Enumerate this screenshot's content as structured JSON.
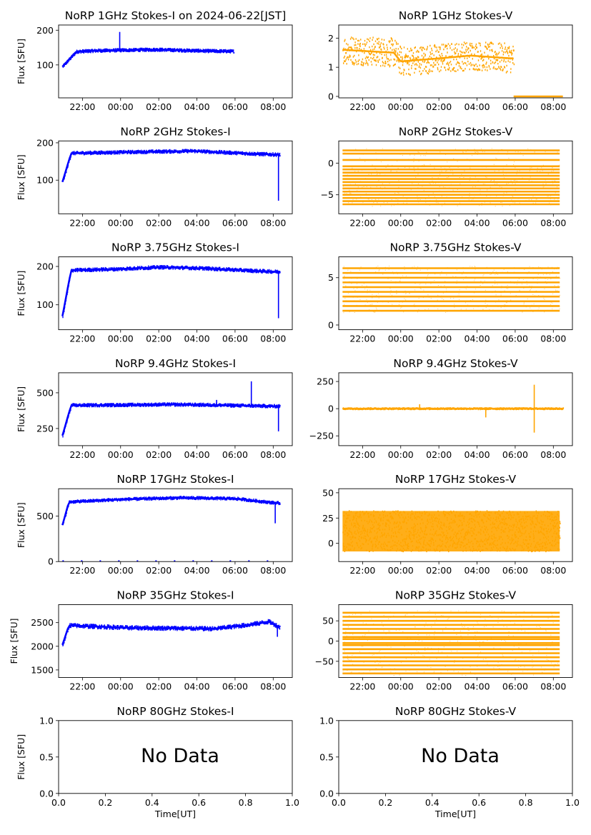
{
  "figure": {
    "x_label": "Time[UT]",
    "y_label": "Flux [SFU]",
    "no_data_text": "No Data"
  },
  "colors": {
    "stokes_i": "#0000ff",
    "stokes_v": "#ffa500"
  },
  "chart_data": [
    {
      "type": "scatter",
      "title": "NoRP 1GHz Stokes-I on 2024-06-22[JST]",
      "ylabel": "Flux [SFU]",
      "xlim": [
        "20:45",
        "09:00"
      ],
      "ylim": [
        5,
        215
      ],
      "xticks": [
        "22:00",
        "00:00",
        "02:00",
        "04:00",
        "06:00",
        "08:00"
      ],
      "yticks": [
        {
          "v": 100,
          "label": "100"
        },
        {
          "v": 200,
          "label": "200"
        }
      ],
      "series": [
        {
          "color": "#0000ff",
          "t0": "20:57",
          "t1": "05:55",
          "base": [
            [
              0,
              95
            ],
            [
              0.08,
              138
            ],
            [
              0.2,
              141
            ],
            [
              0.55,
              144
            ],
            [
              0.69,
              142
            ],
            [
              0.85,
              140
            ],
            [
              1,
              139
            ]
          ],
          "spread": 4,
          "spikes": [
            [
              0.335,
              195
            ]
          ]
        }
      ]
    },
    {
      "type": "scatter",
      "title": "NoRP 1GHz Stokes-V",
      "ylabel": "",
      "xlim": [
        "20:45",
        "09:00"
      ],
      "ylim": [
        -0.05,
        2.45
      ],
      "xticks": [
        "22:00",
        "00:00",
        "02:00",
        "04:00",
        "06:00",
        "08:00"
      ],
      "yticks": [
        {
          "v": 0,
          "label": "0"
        },
        {
          "v": 1,
          "label": "1"
        },
        {
          "v": 2,
          "label": "2"
        }
      ],
      "series": [
        {
          "color": "#ffa500",
          "t0": "20:57",
          "t1": "05:55",
          "base": [
            [
              0,
              1.6
            ],
            [
              0.3,
              1.5
            ],
            [
              0.34,
              1.2
            ],
            [
              0.55,
              1.3
            ],
            [
              0.75,
              1.4
            ],
            [
              1,
              1.3
            ]
          ],
          "spread": 0.5,
          "spikes": []
        }
      ],
      "flat": [
        {
          "t0": "05:55",
          "t1": "08:30",
          "v": 0.0
        }
      ]
    },
    {
      "type": "scatter",
      "title": "NoRP 2GHz Stokes-I",
      "ylabel": "Flux [SFU]",
      "xlim": [
        "20:45",
        "09:00"
      ],
      "ylim": [
        10,
        205
      ],
      "xticks": [
        "22:00",
        "00:00",
        "02:00",
        "04:00",
        "06:00",
        "08:00"
      ],
      "yticks": [
        {
          "v": 100,
          "label": "100"
        },
        {
          "v": 200,
          "label": "200"
        }
      ],
      "series": [
        {
          "color": "#0000ff",
          "t0": "20:57",
          "t1": "08:20",
          "base": [
            [
              0,
              95
            ],
            [
              0.04,
              172
            ],
            [
              0.3,
              175
            ],
            [
              0.6,
              178
            ],
            [
              0.9,
              170
            ],
            [
              1,
              168
            ]
          ],
          "spread": 4,
          "spikes": [
            [
              0.995,
              45
            ]
          ]
        }
      ]
    },
    {
      "type": "bands",
      "title": "NoRP 2GHz Stokes-V",
      "ylabel": "",
      "xlim": [
        "20:45",
        "09:00"
      ],
      "ylim": [
        -8,
        3.5
      ],
      "xticks": [
        "22:00",
        "00:00",
        "02:00",
        "04:00",
        "06:00",
        "08:00"
      ],
      "yticks": [
        {
          "v": 0,
          "label": "0"
        },
        {
          "v": -5,
          "label": "−5"
        }
      ],
      "bands": {
        "color": "#ffa500",
        "t0": "20:57",
        "t1": "08:20",
        "levels": [
          2,
          1.5,
          0.5,
          -0.5,
          -1,
          -1.5,
          -2,
          -2.5,
          -3,
          -3.5,
          -4,
          -4.5,
          -5,
          -5.5,
          -6,
          -6.5
        ]
      }
    },
    {
      "type": "scatter",
      "title": "NoRP 3.75GHz Stokes-I",
      "ylabel": "Flux [SFU]",
      "xlim": [
        "20:45",
        "09:00"
      ],
      "ylim": [
        35,
        225
      ],
      "xticks": [
        "22:00",
        "00:00",
        "02:00",
        "04:00",
        "06:00",
        "08:00"
      ],
      "yticks": [
        {
          "v": 100,
          "label": "100"
        },
        {
          "v": 200,
          "label": "200"
        }
      ],
      "series": [
        {
          "color": "#0000ff",
          "t0": "20:57",
          "t1": "08:20",
          "base": [
            [
              0,
              70
            ],
            [
              0.04,
              190
            ],
            [
              0.25,
              193
            ],
            [
              0.45,
              198
            ],
            [
              0.65,
              195
            ],
            [
              0.9,
              188
            ],
            [
              1,
              186
            ]
          ],
          "spread": 4,
          "spikes": [
            [
              0.995,
              65
            ]
          ]
        }
      ]
    },
    {
      "type": "bands",
      "title": "NoRP 3.75GHz Stokes-V",
      "ylabel": "",
      "xlim": [
        "20:45",
        "09:00"
      ],
      "ylim": [
        -0.5,
        7.2
      ],
      "xticks": [
        "22:00",
        "00:00",
        "02:00",
        "04:00",
        "06:00",
        "08:00"
      ],
      "yticks": [
        {
          "v": 0,
          "label": "0"
        },
        {
          "v": 5,
          "label": "5"
        }
      ],
      "bands": {
        "color": "#ffa500",
        "t0": "20:57",
        "t1": "08:20",
        "levels": [
          6,
          5.5,
          5,
          4.5,
          4,
          3.5,
          3,
          2.5,
          2,
          1.5
        ]
      }
    },
    {
      "type": "scatter",
      "title": "NoRP 9.4GHz Stokes-I",
      "ylabel": "Flux [SFU]",
      "xlim": [
        "20:45",
        "09:00"
      ],
      "ylim": [
        130,
        640
      ],
      "xticks": [
        "22:00",
        "00:00",
        "02:00",
        "04:00",
        "06:00",
        "08:00"
      ],
      "yticks": [
        {
          "v": 250,
          "label": "250"
        },
        {
          "v": 500,
          "label": "500"
        }
      ],
      "series": [
        {
          "color": "#0000ff",
          "t0": "20:57",
          "t1": "08:20",
          "base": [
            [
              0,
              200
            ],
            [
              0.04,
              412
            ],
            [
              0.3,
              415
            ],
            [
              0.5,
              418
            ],
            [
              0.7,
              414
            ],
            [
              1,
              405
            ]
          ],
          "spread": 10,
          "spikes": [
            [
              0.87,
              580
            ],
            [
              0.71,
              450
            ],
            [
              0.995,
              230
            ]
          ]
        }
      ]
    },
    {
      "type": "scatter",
      "title": "NoRP 9.4GHz Stokes-V",
      "ylabel": "",
      "xlim": [
        "20:45",
        "09:00"
      ],
      "ylim": [
        -340,
        330
      ],
      "xticks": [
        "22:00",
        "00:00",
        "02:00",
        "04:00",
        "06:00",
        "08:00"
      ],
      "yticks": [
        {
          "v": 250,
          "label": "250"
        },
        {
          "v": 0,
          "label": "0"
        },
        {
          "v": -250,
          "label": "−250"
        }
      ],
      "series": [
        {
          "color": "#ffa500",
          "t0": "20:57",
          "t1": "08:30",
          "base": [
            [
              0,
              0
            ],
            [
              1,
              0
            ]
          ],
          "spread": 6,
          "spikes": [
            [
              0.87,
              220
            ],
            [
              0.87,
              -220
            ],
            [
              0.65,
              -80
            ],
            [
              0.35,
              40
            ]
          ]
        }
      ]
    },
    {
      "type": "scatter",
      "title": "NoRP 17GHz Stokes-I",
      "ylabel": "Flux [SFU]",
      "xlim": [
        "20:45",
        "09:00"
      ],
      "ylim": [
        0,
        800
      ],
      "xticks": [
        "22:00",
        "00:00",
        "02:00",
        "04:00",
        "06:00",
        "08:00"
      ],
      "yticks": [
        {
          "v": 0,
          "label": "0"
        },
        {
          "v": 500,
          "label": "500"
        }
      ],
      "series": [
        {
          "color": "#0000ff",
          "t0": "20:57",
          "t1": "08:20",
          "base": [
            [
              0,
              400
            ],
            [
              0.03,
              655
            ],
            [
              0.3,
              685
            ],
            [
              0.55,
              700
            ],
            [
              0.8,
              690
            ],
            [
              0.95,
              650
            ],
            [
              1,
              640
            ]
          ],
          "spread": 14,
          "spikes": [
            [
              0.98,
              420
            ]
          ]
        }
      ],
      "flat": [
        {
          "t0": "20:57",
          "t1": "08:30",
          "v": 5,
          "dashed": true
        }
      ]
    },
    {
      "type": "scatter",
      "title": "NoRP 17GHz Stokes-V",
      "ylabel": "",
      "xlim": [
        "20:45",
        "09:00"
      ],
      "ylim": [
        -18,
        54
      ],
      "xticks": [
        "22:00",
        "00:00",
        "02:00",
        "04:00",
        "06:00",
        "08:00"
      ],
      "yticks": [
        {
          "v": 0,
          "label": "0"
        },
        {
          "v": 25,
          "label": "25"
        },
        {
          "v": 50,
          "label": "50"
        }
      ],
      "series": [
        {
          "color": "#ffa500",
          "t0": "20:57",
          "t1": "08:20",
          "base": [
            [
              0,
              12
            ],
            [
              1,
              12
            ]
          ],
          "spread": 20,
          "spikes": []
        }
      ],
      "fill": true
    },
    {
      "type": "scatter",
      "title": "NoRP 35GHz Stokes-I",
      "ylabel": "Flux [SFU]",
      "xlim": [
        "20:45",
        "09:00"
      ],
      "ylim": [
        1340,
        2880
      ],
      "xticks": [
        "22:00",
        "00:00",
        "02:00",
        "04:00",
        "06:00",
        "08:00"
      ],
      "yticks": [
        {
          "v": 1500,
          "label": "1500"
        },
        {
          "v": 2000,
          "label": "2000"
        },
        {
          "v": 2500,
          "label": "2500"
        }
      ],
      "series": [
        {
          "color": "#0000ff",
          "t0": "20:57",
          "t1": "08:20",
          "base": [
            [
              0,
              2030
            ],
            [
              0.03,
              2440
            ],
            [
              0.3,
              2390
            ],
            [
              0.55,
              2380
            ],
            [
              0.7,
              2370
            ],
            [
              0.85,
              2450
            ],
            [
              0.95,
              2520
            ],
            [
              1,
              2400
            ]
          ],
          "spread": 40,
          "spikes": [
            [
              0.99,
              2200
            ]
          ]
        }
      ]
    },
    {
      "type": "bands",
      "title": "NoRP 35GHz Stokes-V",
      "ylabel": "",
      "xlim": [
        "20:45",
        "09:00"
      ],
      "ylim": [
        -90,
        90
      ],
      "xticks": [
        "22:00",
        "00:00",
        "02:00",
        "04:00",
        "06:00",
        "08:00"
      ],
      "yticks": [
        {
          "v": 50,
          "label": "50"
        },
        {
          "v": 0,
          "label": "0"
        },
        {
          "v": -50,
          "label": "−50"
        }
      ],
      "bands": {
        "color": "#ffa500",
        "t0": "20:57",
        "t1": "08:20",
        "levels": [
          70,
          60,
          50,
          40,
          30,
          20,
          10,
          5,
          -5,
          -10,
          -20,
          -30,
          -40,
          -50,
          -60,
          -70,
          -80
        ]
      }
    },
    {
      "type": "empty",
      "title": "NoRP 80GHz Stokes-I",
      "ylabel": "Flux [SFU]",
      "xlim": [
        0,
        1
      ],
      "ylim": [
        0,
        1
      ],
      "xticks": [
        {
          "v": 0,
          "label": "0.0"
        },
        {
          "v": 0.2,
          "label": "0.2"
        },
        {
          "v": 0.4,
          "label": "0.4"
        },
        {
          "v": 0.6,
          "label": "0.6"
        },
        {
          "v": 0.8,
          "label": "0.8"
        },
        {
          "v": 1,
          "label": "1.0"
        }
      ],
      "yticks": [
        {
          "v": 0,
          "label": "0.0"
        },
        {
          "v": 0.5,
          "label": "0.5"
        },
        {
          "v": 1,
          "label": "1.0"
        }
      ]
    },
    {
      "type": "empty",
      "title": "NoRP 80GHz Stokes-V",
      "ylabel": "",
      "xlim": [
        0,
        1
      ],
      "ylim": [
        0,
        1
      ],
      "xticks": [
        {
          "v": 0,
          "label": "0.0"
        },
        {
          "v": 0.2,
          "label": "0.2"
        },
        {
          "v": 0.4,
          "label": "0.4"
        },
        {
          "v": 0.6,
          "label": "0.6"
        },
        {
          "v": 0.8,
          "label": "0.8"
        },
        {
          "v": 1,
          "label": "1.0"
        }
      ],
      "yticks": [
        {
          "v": 0,
          "label": "0.0"
        },
        {
          "v": 0.5,
          "label": "0.5"
        },
        {
          "v": 1,
          "label": "1.0"
        }
      ]
    }
  ]
}
